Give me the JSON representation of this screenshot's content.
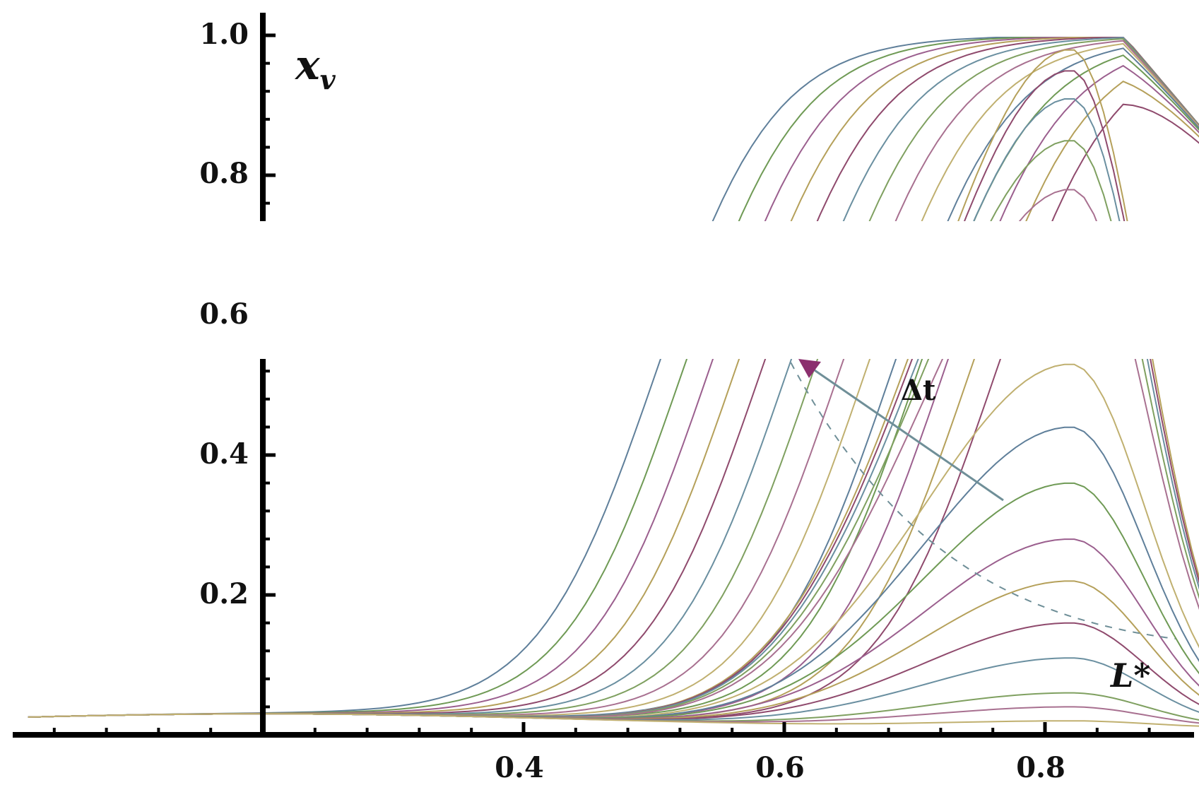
{
  "chart_data": {
    "type": "line",
    "title": "",
    "xlabel": "",
    "ylabel": "x",
    "ylabel_subscript": "v",
    "x_ticks": [
      "0.4",
      "0.6",
      "0.8"
    ],
    "y_ticks": [
      "0.2",
      "0.4",
      "0.6",
      "0.8",
      "1.0"
    ],
    "xlim": [
      0.02,
      0.92
    ],
    "ylim": [
      0.0,
      1.0
    ],
    "axis_crossing": {
      "x": 0.2,
      "y": 0.0
    },
    "grid": false,
    "legend": "none",
    "annotations": [
      {
        "text": "Δt",
        "meaning": "arrow showing direction of increasing time across curve family"
      },
      {
        "text": "L*",
        "meaning": "dashed reference curve label"
      }
    ],
    "colors": [
      "#5f7f9a",
      "#6f9a55",
      "#9b5f8e",
      "#b5a05a",
      "#8f4a6d",
      "#6a8fa0",
      "#7fa060",
      "#a87090",
      "#c0b070"
    ],
    "rising_family": {
      "description": "sigmoid-like curves rising to saturation near x_v = 1.0, shifting right with increasing time",
      "x_half": [
        0.5,
        0.52,
        0.54,
        0.56,
        0.58,
        0.6,
        0.62,
        0.64,
        0.66,
        0.68,
        0.7,
        0.72,
        0.74,
        0.76
      ],
      "steepness": 22
    },
    "peaked_family": {
      "description": "lower-amplitude curves peaking near x = 0.82 then dropping",
      "peak_x": 0.82,
      "peaks": [
        0.98,
        0.95,
        0.91,
        0.85,
        0.78,
        0.53,
        0.44,
        0.36,
        0.28,
        0.22,
        0.16,
        0.11,
        0.06,
        0.04,
        0.02
      ]
    },
    "dashed_curve": {
      "name": "L*",
      "start_x": 0.6,
      "end_x": 0.9,
      "end_y": 0.07
    }
  }
}
